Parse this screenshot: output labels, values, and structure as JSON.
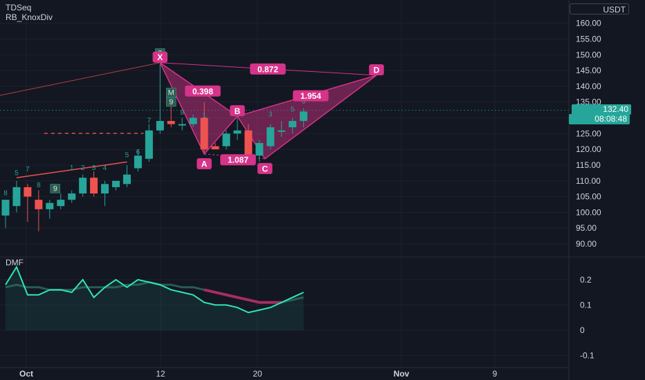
{
  "indicators": {
    "top": [
      "TDSeq",
      "RB_KnoxDiv"
    ],
    "bottom": "DMF"
  },
  "price_axis": {
    "currency": "USDT",
    "ticks": [
      "160.00",
      "155.00",
      "150.00",
      "145.00",
      "140.00",
      "135.00",
      "130.00",
      "125.00",
      "120.00",
      "115.00",
      "110.00",
      "105.00",
      "100.00",
      "95.00",
      "90.00"
    ],
    "current_price": "132.40",
    "countdown": "08:08:48"
  },
  "dmf_axis": {
    "ticks": [
      "0.2",
      "0.1",
      "0",
      "-0.1"
    ]
  },
  "time_axis": {
    "ticks": [
      "Oct",
      "12",
      "20",
      "Nov",
      "9"
    ]
  },
  "colors": {
    "up": "#26a69a",
    "down": "#ef5350",
    "pattern": "#d6338a",
    "dmf_line": "#2ee8b6",
    "dmf_signal": "#b22a63",
    "background": "#131722"
  },
  "chart_data": {
    "type": "candlestick",
    "ylim": [
      88,
      163
    ],
    "candles": [
      {
        "o": 99,
        "h": 104,
        "l": 95,
        "c": 104
      },
      {
        "o": 102,
        "h": 110,
        "l": 100,
        "c": 108
      },
      {
        "o": 108,
        "h": 109,
        "l": 97,
        "c": 105
      },
      {
        "o": 104,
        "h": 107,
        "l": 94,
        "c": 101
      },
      {
        "o": 101,
        "h": 104,
        "l": 98,
        "c": 103
      },
      {
        "o": 102,
        "h": 106,
        "l": 101,
        "c": 104
      },
      {
        "o": 104,
        "h": 107,
        "l": 103,
        "c": 106
      },
      {
        "o": 106,
        "h": 112,
        "l": 105,
        "c": 111
      },
      {
        "o": 111,
        "h": 113,
        "l": 105,
        "c": 106
      },
      {
        "o": 106,
        "h": 110,
        "l": 102,
        "c": 109
      },
      {
        "o": 108,
        "h": 110,
        "l": 107,
        "c": 110
      },
      {
        "o": 109,
        "h": 115,
        "l": 108,
        "c": 112
      },
      {
        "o": 114,
        "h": 120,
        "l": 113,
        "c": 118
      },
      {
        "o": 117,
        "h": 128,
        "l": 116,
        "c": 126
      },
      {
        "o": 126,
        "h": 147,
        "l": 125,
        "c": 129
      },
      {
        "o": 129,
        "h": 135,
        "l": 127,
        "c": 128
      },
      {
        "o": 128,
        "h": 130,
        "l": 126,
        "c": 128
      },
      {
        "o": 128,
        "h": 131,
        "l": 127,
        "c": 130
      },
      {
        "o": 130,
        "h": 135,
        "l": 119,
        "c": 120
      },
      {
        "o": 121,
        "h": 122,
        "l": 120,
        "c": 120
      },
      {
        "o": 121,
        "h": 126,
        "l": 120,
        "c": 125
      },
      {
        "o": 125,
        "h": 130,
        "l": 123,
        "c": 126
      },
      {
        "o": 126,
        "h": 128,
        "l": 116,
        "c": 118
      },
      {
        "o": 118,
        "h": 123,
        "l": 116,
        "c": 122
      },
      {
        "o": 121,
        "h": 128,
        "l": 120,
        "c": 127
      },
      {
        "o": 126,
        "h": 129,
        "l": 124,
        "c": 126
      },
      {
        "o": 127,
        "h": 130,
        "l": 125,
        "c": 129
      },
      {
        "o": 129,
        "h": 133,
        "l": 127,
        "c": 132
      }
    ],
    "harmonic_pattern": {
      "points": {
        "X": 147.5,
        "A": 118.5,
        "B": 130.5,
        "C": 117,
        "D": 143.5
      },
      "ratios": {
        "XB": "0.398",
        "AC": "1.087",
        "BD": "1.954",
        "XD": "0.872"
      },
      "labels": [
        "X",
        "A",
        "B",
        "C",
        "D"
      ]
    },
    "dmf": {
      "values": [
        0.18,
        0.25,
        0.14,
        0.14,
        0.16,
        0.16,
        0.15,
        0.2,
        0.13,
        0.17,
        0.2,
        0.17,
        0.2,
        0.19,
        0.18,
        0.16,
        0.15,
        0.14,
        0.11,
        0.1,
        0.1,
        0.09,
        0.07,
        0.08,
        0.09,
        0.11,
        0.13,
        0.15
      ],
      "signal": [
        0.17,
        0.18,
        0.17,
        0.17,
        0.16,
        0.16,
        0.16,
        0.17,
        0.17,
        0.17,
        0.17,
        0.18,
        0.18,
        0.19,
        0.18,
        0.18,
        0.17,
        0.17,
        0.16,
        0.15,
        0.14,
        0.13,
        0.12,
        0.11,
        0.11,
        0.11,
        0.12,
        0.13
      ],
      "ylim": [
        -0.13,
        0.25
      ]
    }
  }
}
